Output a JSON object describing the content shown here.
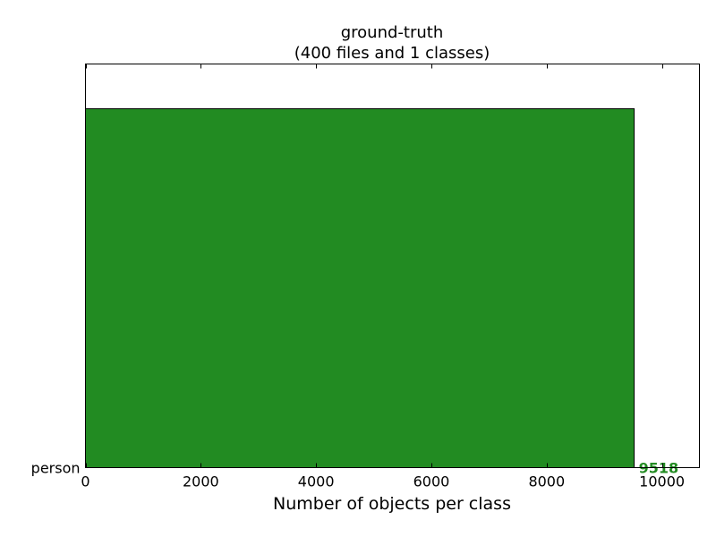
{
  "chart_data": {
    "type": "bar",
    "orientation": "horizontal",
    "title_line1": "ground-truth",
    "title_line2": "(400 files and 1 classes)",
    "xlabel": "Number of objects per class",
    "ylabel": "",
    "categories": [
      "person"
    ],
    "values": [
      9518
    ],
    "value_labels": [
      "9518"
    ],
    "xlim": [
      0,
      10650
    ],
    "xticks": [
      0,
      2000,
      4000,
      6000,
      8000,
      10000
    ],
    "xtick_labels": [
      "0",
      "2000",
      "4000",
      "6000",
      "8000",
      "10000"
    ],
    "bar_color": "#228b22",
    "label_color": "#228b22",
    "grid": false,
    "legend": "none"
  }
}
